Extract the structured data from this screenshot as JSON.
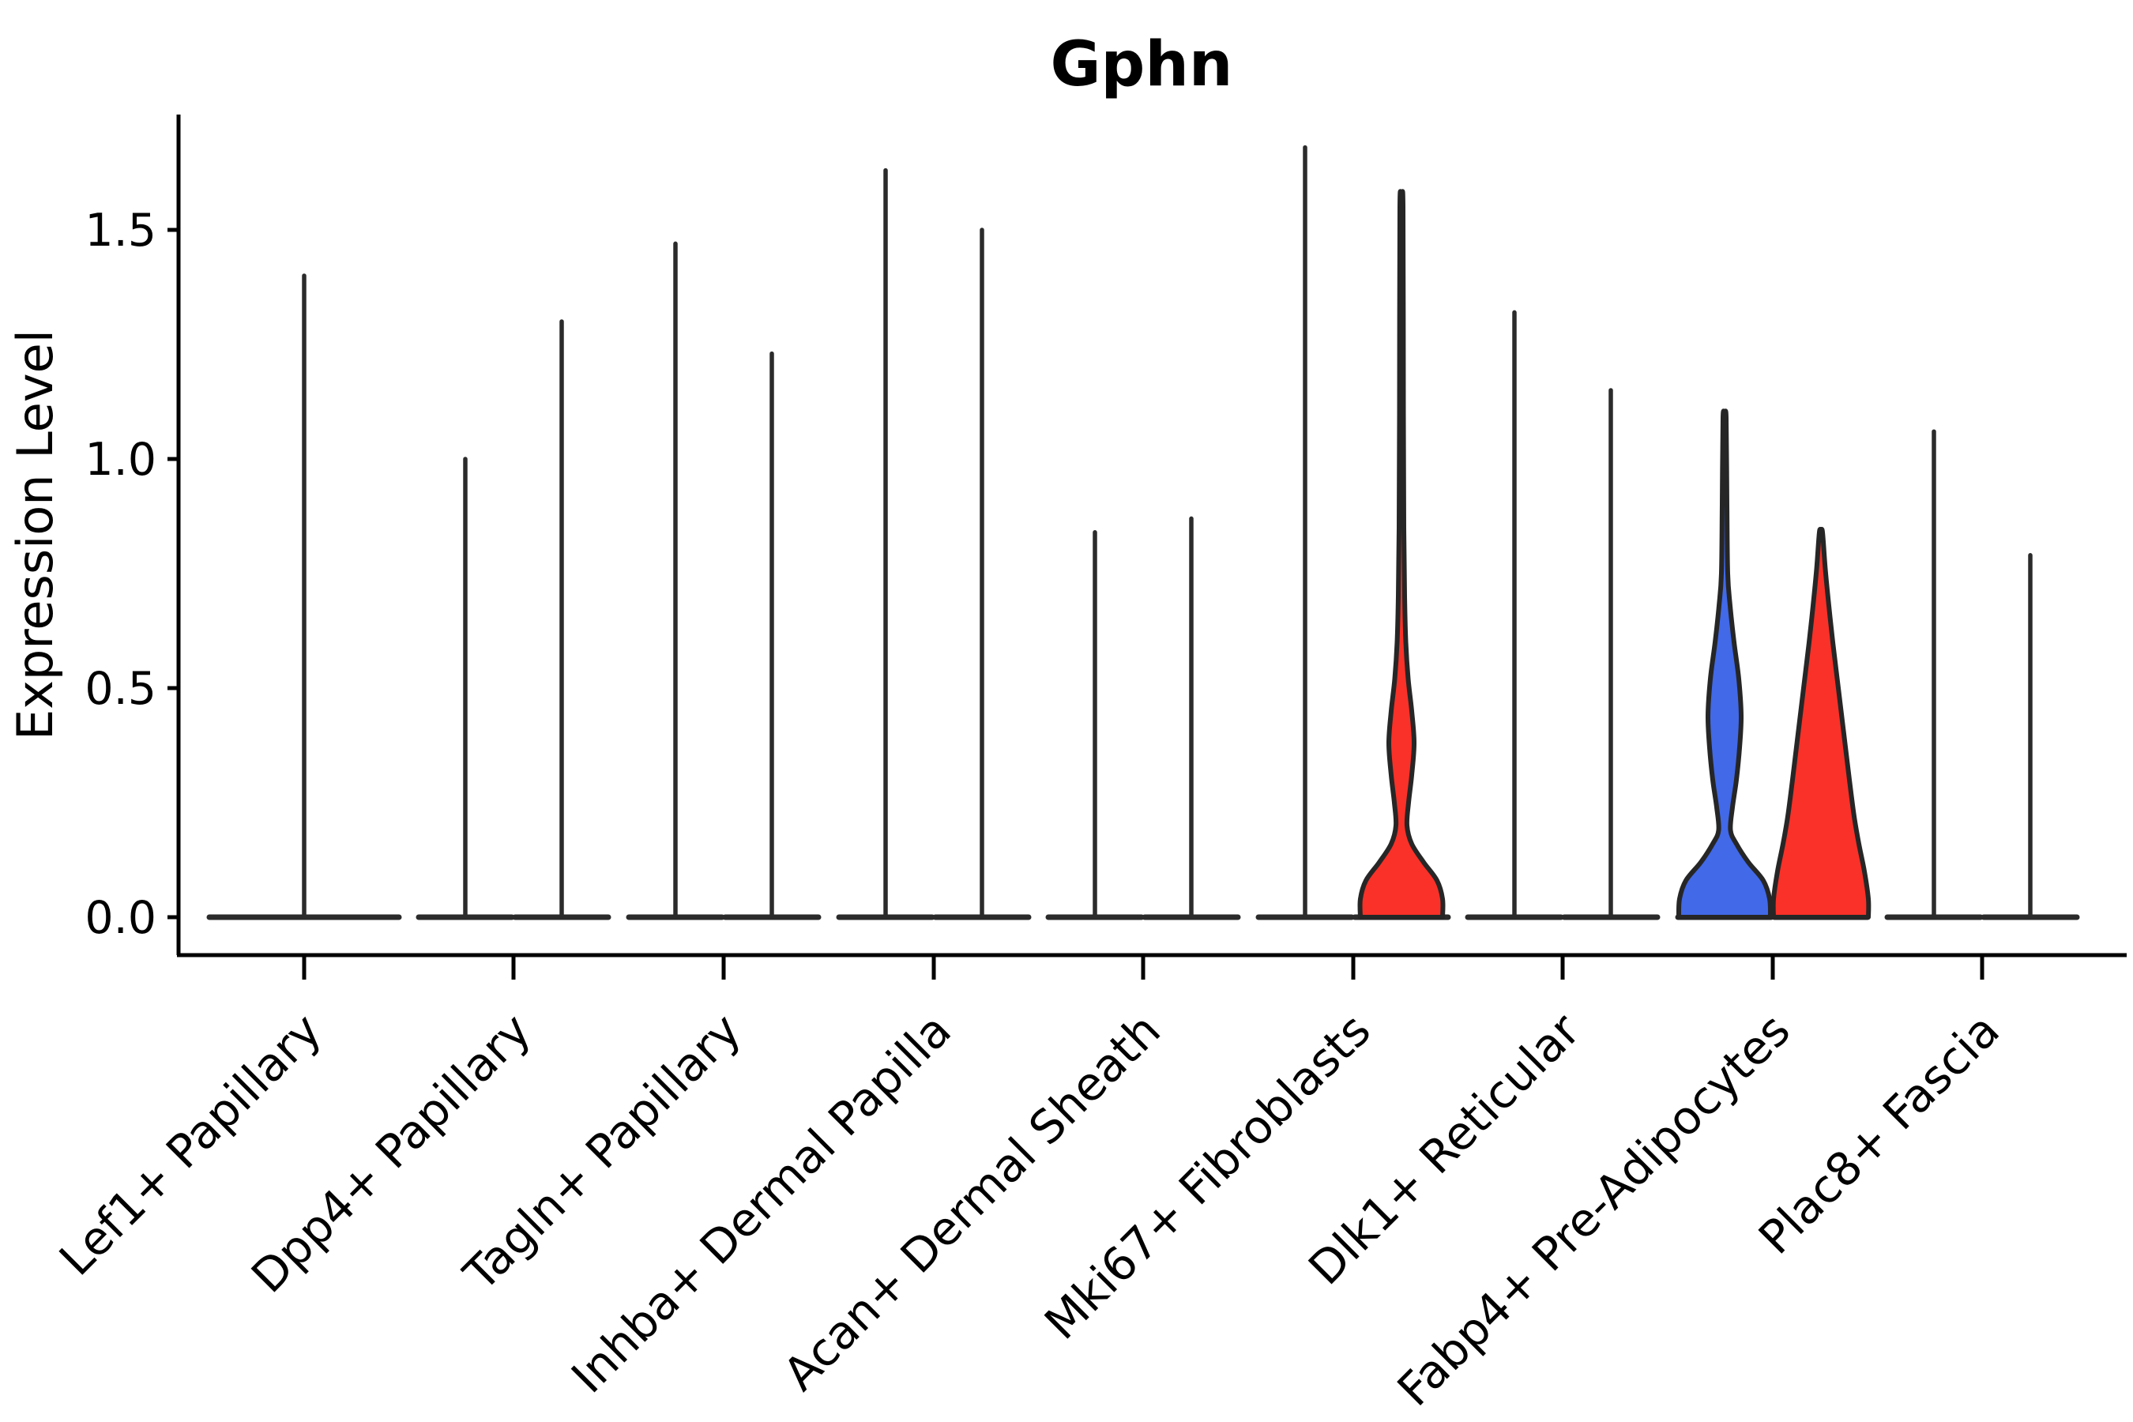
{
  "title": "Gphn",
  "ylabel": "Expression Level",
  "chart_data": {
    "type": "violin",
    "title": "Gphn",
    "xlabel": "",
    "ylabel": "Expression Level",
    "grid": false,
    "legend": "none",
    "ylim": [
      -0.08,
      1.75
    ],
    "yticks": [
      0.0,
      0.5,
      1.0,
      1.5
    ],
    "ytick_labels": [
      "0.0",
      "0.5",
      "1.0",
      "1.5"
    ],
    "categories": [
      "Lef1+ Papillary",
      "Dpp4+ Papillary",
      "Tagln+ Papillary",
      "Inhba+ Dermal Papilla",
      "Acan+ Dermal Sheath",
      "Mki67+ Fibroblasts",
      "Dlk1+ Reticular",
      "Fabp4+ Pre-Adipocytes",
      "Plac8+ Fascia"
    ],
    "colors": {
      "blue_fill": "#4169E8",
      "red_fill": "#F93128",
      "violin_outline": "#262626",
      "spike_stroke": "#2b2b2b",
      "axis": "#000000"
    },
    "note": "Each category shows up to two violins (left/right). Most are flat at 0 with a thin density spike; max = top of spike in expression units.",
    "groups": [
      {
        "category": "Lef1+ Papillary",
        "violins": [
          {
            "side": "full",
            "shape": "spike",
            "fill": "none",
            "max": 1.4
          }
        ]
      },
      {
        "category": "Dpp4+ Papillary",
        "violins": [
          {
            "side": "left",
            "shape": "spike",
            "fill": "none",
            "max": 1.0
          },
          {
            "side": "right",
            "shape": "spike",
            "fill": "none",
            "max": 1.3
          }
        ]
      },
      {
        "category": "Tagln+ Papillary",
        "violins": [
          {
            "side": "left",
            "shape": "spike",
            "fill": "none",
            "max": 1.47
          },
          {
            "side": "right",
            "shape": "spike",
            "fill": "none",
            "max": 1.23
          }
        ]
      },
      {
        "category": "Inhba+ Dermal Papilla",
        "violins": [
          {
            "side": "left",
            "shape": "spike",
            "fill": "none",
            "max": 1.63
          },
          {
            "side": "right",
            "shape": "spike",
            "fill": "none",
            "max": 1.5
          }
        ]
      },
      {
        "category": "Acan+ Dermal Sheath",
        "violins": [
          {
            "side": "left",
            "shape": "spike",
            "fill": "none",
            "max": 0.84
          },
          {
            "side": "right",
            "shape": "spike",
            "fill": "none",
            "max": 0.87
          }
        ]
      },
      {
        "category": "Mki67+ Fibroblasts",
        "violins": [
          {
            "side": "left",
            "shape": "spike",
            "fill": "none",
            "max": 1.68
          },
          {
            "side": "right",
            "shape": "violin",
            "fill": "#F93128",
            "max": 1.55,
            "profile": [
              [
                0,
                52
              ],
              [
                0.04,
                52
              ],
              [
                0.08,
                45
              ],
              [
                0.12,
                28
              ],
              [
                0.16,
                13
              ],
              [
                0.2,
                7
              ],
              [
                0.25,
                9
              ],
              [
                0.31,
                13
              ],
              [
                0.38,
                16
              ],
              [
                0.45,
                13
              ],
              [
                0.52,
                8.5
              ],
              [
                0.6,
                5.5
              ],
              [
                0.7,
                4
              ],
              [
                0.85,
                3
              ],
              [
                1.1,
                2.5
              ],
              [
                1.55,
                2
              ]
            ]
          }
        ]
      },
      {
        "category": "Dlk1+ Reticular",
        "violins": [
          {
            "side": "left",
            "shape": "spike",
            "fill": "none",
            "max": 1.32
          },
          {
            "side": "right",
            "shape": "spike",
            "fill": "none",
            "max": 1.15
          }
        ]
      },
      {
        "category": "Fabp4+ Pre-Adipocytes",
        "violins": [
          {
            "side": "left",
            "shape": "violin",
            "fill": "#4169E8",
            "max": 1.09,
            "profile": [
              [
                0,
                58
              ],
              [
                0.04,
                57
              ],
              [
                0.08,
                49
              ],
              [
                0.12,
                30
              ],
              [
                0.16,
                15
              ],
              [
                0.19,
                7.5
              ],
              [
                0.24,
                10
              ],
              [
                0.3,
                15
              ],
              [
                0.37,
                19
              ],
              [
                0.44,
                21
              ],
              [
                0.52,
                18
              ],
              [
                0.6,
                12
              ],
              [
                0.68,
                7
              ],
              [
                0.75,
                4
              ],
              [
                0.9,
                3
              ],
              [
                1.09,
                2
              ]
            ]
          },
          {
            "side": "right",
            "shape": "violin",
            "fill": "#F93128",
            "max": 0.84,
            "profile": [
              [
                0,
                60
              ],
              [
                0.04,
                60
              ],
              [
                0.1,
                55
              ],
              [
                0.16,
                48
              ],
              [
                0.22,
                42
              ],
              [
                0.3,
                36
              ],
              [
                0.4,
                29
              ],
              [
                0.5,
                22
              ],
              [
                0.6,
                15
              ],
              [
                0.68,
                10
              ],
              [
                0.76,
                5.5
              ],
              [
                0.84,
                2
              ]
            ]
          }
        ]
      },
      {
        "category": "Plac8+ Fascia",
        "violins": [
          {
            "side": "left",
            "shape": "spike",
            "fill": "none",
            "max": 1.06
          },
          {
            "side": "right",
            "shape": "spike",
            "fill": "none",
            "max": 0.79
          }
        ]
      }
    ]
  }
}
